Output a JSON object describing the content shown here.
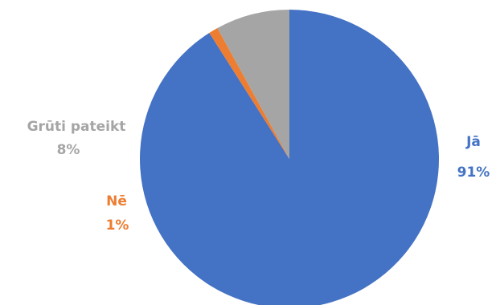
{
  "chart_data": {
    "type": "pie",
    "title": "",
    "start_angle_deg": 0,
    "direction": "clockwise",
    "slices": [
      {
        "label": "Jā",
        "value": 91,
        "value_label": "91%",
        "color": "#4472C4"
      },
      {
        "label": "Nē",
        "value": 1,
        "value_label": "1%",
        "color": "#ED7D31"
      },
      {
        "label": "Grūti pateikt",
        "value": 8,
        "value_label": "8%",
        "color": "#A5A5A5"
      }
    ]
  }
}
